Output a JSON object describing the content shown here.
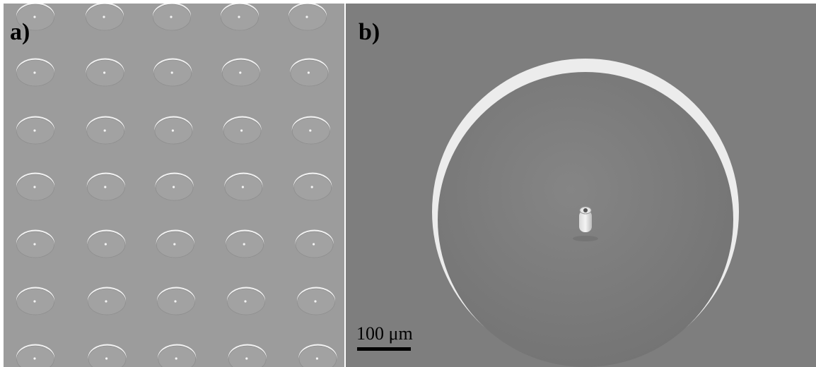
{
  "panels": [
    {
      "label": "a)"
    },
    {
      "label": "b)"
    }
  ],
  "scale_bar": {
    "label": "100 μm"
  }
}
